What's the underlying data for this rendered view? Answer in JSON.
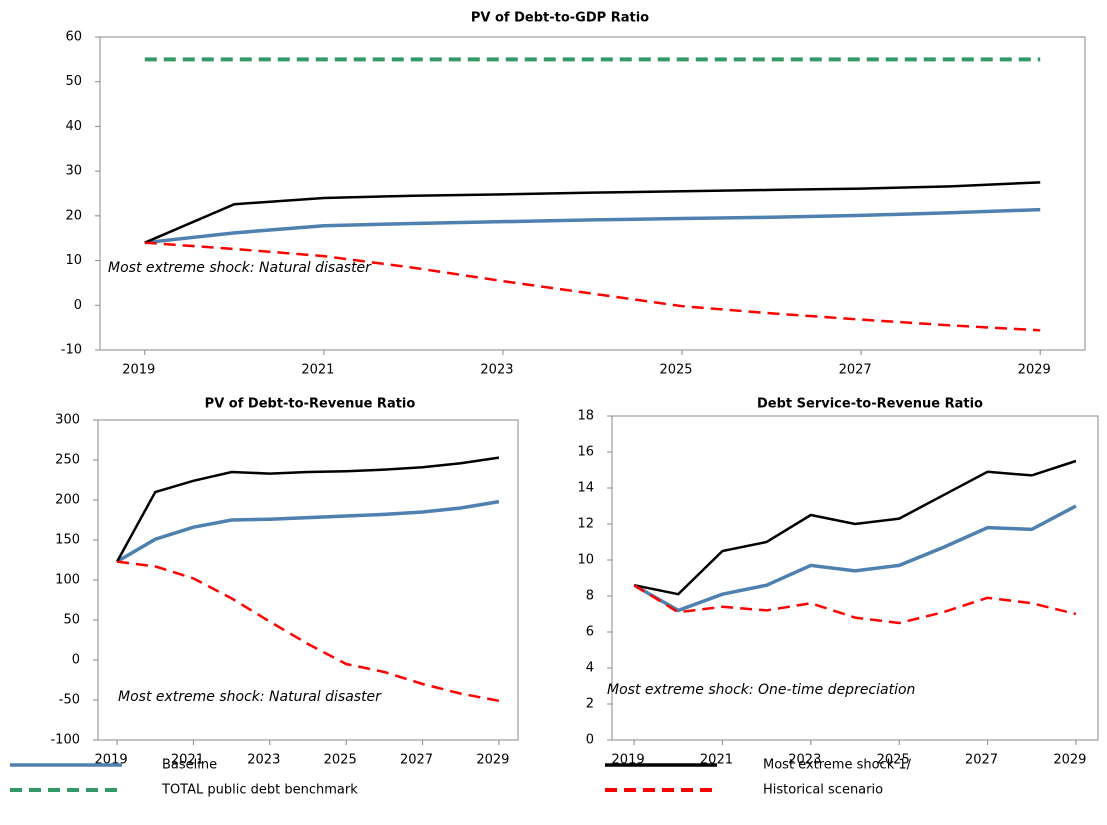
{
  "chart_data": [
    {
      "type": "line",
      "title": "PV of Debt-to-GDP Ratio",
      "annotation": "Most extreme shock: Natural disaster",
      "x": [
        2019,
        2020,
        2021,
        2022,
        2023,
        2024,
        2025,
        2026,
        2027,
        2028,
        2029
      ],
      "xlim": [
        2018.5,
        2029.5
      ],
      "xticks": [
        2019,
        2021,
        2023,
        2025,
        2027,
        2029
      ],
      "ylim": [
        -10,
        60
      ],
      "yticks": [
        -10,
        0,
        10,
        20,
        30,
        40,
        50,
        60
      ],
      "series": [
        {
          "name": "Baseline",
          "color": "#4f81b0",
          "dashed": false,
          "values": [
            14,
            16.2,
            17.8,
            18.3,
            18.7,
            19.1,
            19.4,
            19.7,
            20.1,
            20.7,
            21.4
          ]
        },
        {
          "name": "Most extreme shock 1/",
          "color": "#000000",
          "dashed": false,
          "values": [
            14,
            22.6,
            24,
            24.5,
            24.8,
            25.2,
            25.5,
            25.8,
            26.1,
            26.6,
            27.5
          ]
        },
        {
          "name": "TOTAL public debt benchmark",
          "color": "#339966",
          "dashed": true,
          "values": [
            55,
            55,
            55,
            55,
            55,
            55,
            55,
            55,
            55,
            55,
            55
          ]
        },
        {
          "name": "Historical scenario",
          "color": "#ff0000",
          "dashed": true,
          "values": [
            14,
            12.6,
            11,
            8.4,
            5.4,
            2.6,
            -0.2,
            -1.8,
            -3.2,
            -4.5,
            -5.6
          ]
        }
      ]
    },
    {
      "type": "line",
      "title": "PV of Debt-to-Revenue Ratio",
      "annotation": "Most extreme shock: Natural disaster",
      "x": [
        2019,
        2020,
        2021,
        2022,
        2023,
        2024,
        2025,
        2026,
        2027,
        2028,
        2029
      ],
      "xlim": [
        2018.5,
        2029.5
      ],
      "xticks": [
        2019,
        2021,
        2023,
        2025,
        2027,
        2029
      ],
      "ylim": [
        -100,
        300
      ],
      "yticks": [
        -100,
        -50,
        0,
        50,
        100,
        150,
        200,
        250,
        300
      ],
      "series": [
        {
          "name": "Baseline",
          "color": "#4f81b0",
          "dashed": false,
          "values": [
            123,
            151,
            166,
            175,
            176,
            178,
            180,
            182,
            185,
            190,
            198
          ]
        },
        {
          "name": "Most extreme shock 1/",
          "color": "#000000",
          "dashed": false,
          "values": [
            123,
            210,
            224,
            235,
            233,
            235,
            236,
            238,
            241,
            246,
            253
          ]
        },
        {
          "name": "Historical scenario",
          "color": "#ff0000",
          "dashed": true,
          "values": [
            123,
            117,
            102,
            77,
            48,
            20,
            -5,
            -15,
            -30,
            -42,
            -51
          ]
        }
      ]
    },
    {
      "type": "line",
      "title": "Debt Service-to-Revenue Ratio",
      "annotation": "Most extreme shock: One-time depreciation",
      "x": [
        2019,
        2020,
        2021,
        2022,
        2023,
        2024,
        2025,
        2026,
        2027,
        2028,
        2029
      ],
      "xlim": [
        2018.5,
        2029.5
      ],
      "xticks": [
        2019,
        2021,
        2023,
        2025,
        2027,
        2029
      ],
      "ylim": [
        0,
        18
      ],
      "yticks": [
        0,
        2,
        4,
        6,
        8,
        10,
        12,
        14,
        16,
        18
      ],
      "series": [
        {
          "name": "Baseline",
          "color": "#4f81b0",
          "dashed": false,
          "values": [
            8.6,
            7.2,
            8.1,
            8.6,
            9.7,
            9.4,
            9.7,
            10.7,
            11.8,
            11.7,
            13.0
          ]
        },
        {
          "name": "Most extreme shock 1/",
          "color": "#000000",
          "dashed": false,
          "values": [
            8.6,
            8.1,
            10.5,
            11.0,
            12.5,
            12.0,
            12.3,
            13.6,
            14.9,
            14.7,
            15.5
          ]
        },
        {
          "name": "Historical scenario",
          "color": "#ff0000",
          "dashed": true,
          "values": [
            8.6,
            7.1,
            7.4,
            7.2,
            7.6,
            6.8,
            6.5,
            7.1,
            7.9,
            7.6,
            7.0
          ]
        }
      ]
    }
  ]
}
